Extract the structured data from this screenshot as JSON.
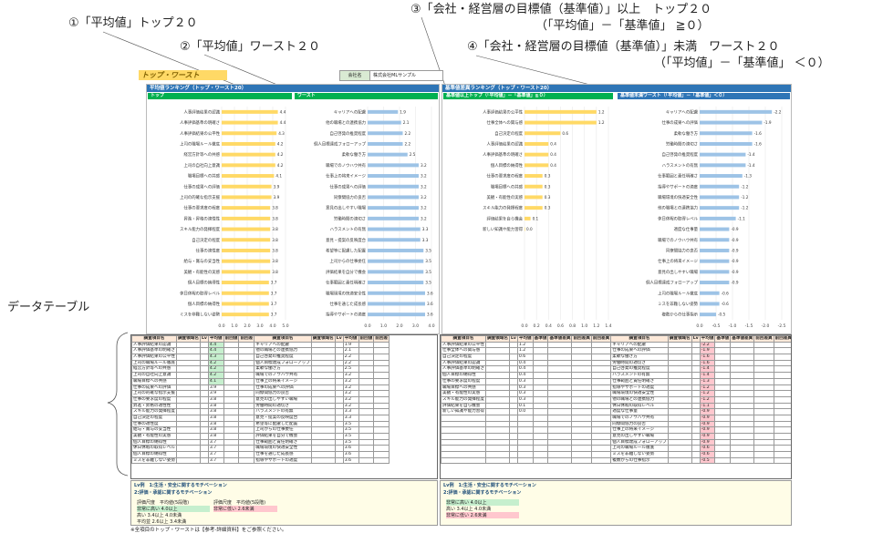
{
  "callouts": {
    "c1": "①「平均値」トップ２０",
    "c2": "②「平均値」ワースト２０",
    "c3": "③「会社・経営層の目標値（基準値）」以上　トップ２０",
    "c3b": "（「平均値」－「基準値」 ≧０）",
    "c4": "④「会社・経営層の目標値（基準値）」未満　ワースト２０",
    "c4b": "（「平均値」－「基準値」 ＜０）",
    "datatable": "データテーブル"
  },
  "page_title": "トップ・ワースト",
  "company": {
    "label": "会社名",
    "value": "株式会社MLサンプル"
  },
  "panels": {
    "avg_title": "平均値ランキング（トップ・ワースト20）",
    "top_label": "トップ",
    "worst_label": "ワースト",
    "std_title": "基準値差異ランキング（トップ・ワースト20）",
    "above_label": "基準値以上トップ（「平均値」－「基準値」≧０）",
    "below_label": "基準値未満ワースト（「平均値」－「基準値」＜０）"
  },
  "colors": {
    "bar_top": "#ffd966",
    "bar_blue": "#9dc3e6",
    "header": "#2e75b6",
    "green": "#00b050"
  },
  "chart_top": {
    "categories": [
      "人事評価結果の認識",
      "人事評価基準の明確さ",
      "人事評価結果の公平性",
      "上司の職場ルール徹底",
      "経営方針等への共感",
      "上司の自社向上意識",
      "職場目標への共感",
      "仕事の成果への評価",
      "上司の的確な指示支援",
      "仕事の要求度の程度",
      "昇進・昇格の適性性",
      "スキル能力の発揮程度",
      "自己決定の程度",
      "仕事の適性度",
      "給与・賞与の妥当性",
      "美観・有能性の実感",
      "個人目標の納得性",
      "休日休暇の取得レベル",
      "個人目標の納得性",
      "ミスを非難しない姿勢"
    ],
    "values": [
      4.4,
      4.4,
      4.3,
      4.2,
      4.2,
      4.2,
      4.1,
      3.9,
      3.9,
      3.8,
      3.8,
      3.8,
      3.8,
      3.8,
      3.8,
      3.8,
      3.7,
      3.7,
      3.7,
      3.7
    ],
    "ticks": [
      "0.0",
      "1.0",
      "2.0",
      "3.0",
      "4.0",
      "5.0"
    ]
  },
  "chart_worst": {
    "categories": [
      "キャリアへの配慮",
      "他の職場との連携協力",
      "自己啓発の推奨程度",
      "個人目標達成フォローアップ",
      "柔軟な働き方",
      "職場でのノウハウ共有",
      "仕事上の将来イメージ",
      "仕事の成果への評価",
      "同僚間協力の良否",
      "意見の出しやすい職場",
      "労働時間の適切さ",
      "ハラスメントの有無",
      "意見・提案の反映度合",
      "希望等に配慮した配置",
      "上司からの仕事委任",
      "評価結果を自分で機会",
      "仕事範囲と責任明確さ",
      "職場環境の快適安全性",
      "仕事を通じた成長感",
      "指導やサポートの適度"
    ],
    "values": [
      1.9,
      2.1,
      2.2,
      2.2,
      2.5,
      3.2,
      3.2,
      3.2,
      3.2,
      3.2,
      3.2,
      3.3,
      3.3,
      3.5,
      3.5,
      3.5,
      3.5,
      3.6,
      3.6,
      3.6
    ],
    "ticks": [
      "0.0",
      "1.0",
      "2.0",
      "3.0",
      "4.0"
    ]
  },
  "chart_above": {
    "categories": [
      "人事評価結果の公平性",
      "仕事全体への関与感",
      "自己決定の程度",
      "人事評価結果の認識",
      "人事評価基準の明確さ",
      "個人目標の納得性",
      "仕事の要求度の程度",
      "職場目標への共感",
      "美観・有能性の実感",
      "スキル能力の発揮程度",
      "評価結果を自ら機会",
      "新しい知識や能力習得"
    ],
    "values": [
      1.2,
      1.2,
      0.6,
      0.4,
      0.4,
      0.4,
      0.3,
      0.3,
      0.3,
      0.3,
      0.1,
      0.0
    ],
    "ticks": [
      "0.0",
      "0.2",
      "0.4",
      "0.6",
      "0.8",
      "1.0",
      "1.2",
      "1.4"
    ]
  },
  "chart_below": {
    "categories": [
      "キャリアへの配慮",
      "仕事の成果への評価",
      "柔軟な働き方",
      "労働時間の適切さ",
      "自己啓発の推奨程度",
      "ハラスメントの有無",
      "仕事範囲と責任明確さ",
      "指導やサポートの適度",
      "職場環境の快適安全性",
      "他の職場との連携協力",
      "休日休暇の取得レベル",
      "適度な仕事量",
      "職場でのノウハウ共有",
      "同僚間協力の良否",
      "仕事上の将来イメージ",
      "意見の出しやすい職場",
      "個人目標達成フォローアップ",
      "上司の職場ルール徹底",
      "ミスを非難しない姿勢",
      "複数からの仕事指示"
    ],
    "values": [
      -2.2,
      -1.9,
      -1.6,
      -1.6,
      -1.4,
      -1.4,
      -1.3,
      -1.2,
      -1.2,
      -1.2,
      -1.1,
      -0.9,
      -0.9,
      -0.9,
      -0.9,
      -0.9,
      -0.9,
      -0.6,
      -0.6,
      -0.5
    ],
    "ticks": [
      "0.0",
      "-0.5",
      "-1.0",
      "-1.5",
      "-2.0",
      "-2.5"
    ]
  },
  "table_headers": [
    "調査項目名",
    "調査領域名",
    "Lv",
    "平均値",
    "前回値",
    "前回差"
  ],
  "table_headers2": [
    "調査項目名",
    "調査領域名",
    "Lv",
    "平均値",
    "基準値",
    "基準値差異",
    "前回差異",
    "前回差異"
  ],
  "legend": {
    "l1": "Lv例　1:生活・安全に関するモチベーション",
    "l2": "2:評価・承認に関するモチベーション",
    "r1": "評価尺度",
    "r2": "平均値(5段階)",
    "r3": "評価尺度",
    "r4": "平均値(5段階)",
    "high": "非常に高い",
    "high_v": "4.0以上",
    "mid": "高い",
    "mid_v": "3.4以上 4.0未満",
    "avg": "平均並",
    "avg_v": "2.6以上 3.4未満",
    "low": "非常に低い",
    "low_v": "2.6未満"
  },
  "footnote": "※全項目のトップ・ワーストは【参考-詳細資料】をご参照ください。"
}
